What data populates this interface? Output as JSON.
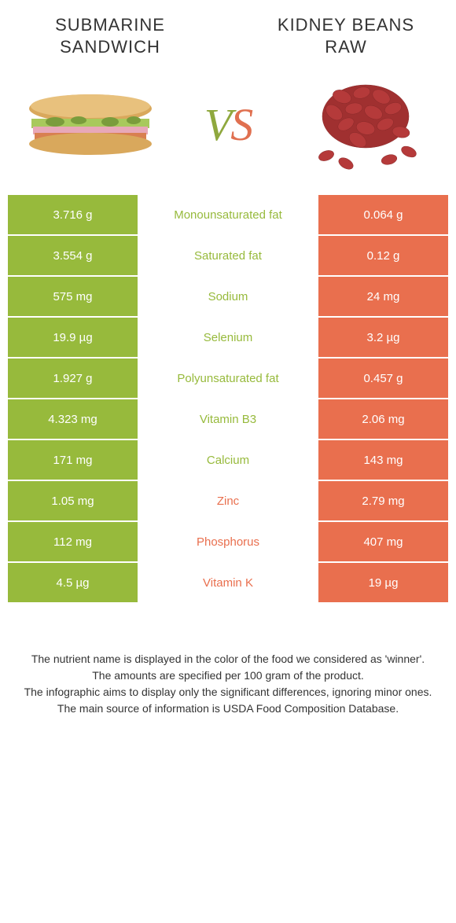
{
  "colors": {
    "green": "#97ba3c",
    "orange": "#e96f4e",
    "text": "#333333"
  },
  "header": {
    "left_title": "SUBMARINE SANDWICH",
    "right_title": "KIDNEY BEANS RAW",
    "vs": "VS"
  },
  "rows": [
    {
      "left": "3.716 g",
      "label": "Monounsaturated fat",
      "right": "0.064 g",
      "winner": "left"
    },
    {
      "left": "3.554 g",
      "label": "Saturated fat",
      "right": "0.12 g",
      "winner": "left"
    },
    {
      "left": "575 mg",
      "label": "Sodium",
      "right": "24 mg",
      "winner": "left"
    },
    {
      "left": "19.9 µg",
      "label": "Selenium",
      "right": "3.2 µg",
      "winner": "left"
    },
    {
      "left": "1.927 g",
      "label": "Polyunsaturated fat",
      "right": "0.457 g",
      "winner": "left"
    },
    {
      "left": "4.323 mg",
      "label": "Vitamin B3",
      "right": "2.06 mg",
      "winner": "left"
    },
    {
      "left": "171 mg",
      "label": "Calcium",
      "right": "143 mg",
      "winner": "left"
    },
    {
      "left": "1.05 mg",
      "label": "Zinc",
      "right": "2.79 mg",
      "winner": "right"
    },
    {
      "left": "112 mg",
      "label": "Phosphorus",
      "right": "407 mg",
      "winner": "right"
    },
    {
      "left": "4.5 µg",
      "label": "Vitamin K",
      "right": "19 µg",
      "winner": "right"
    }
  ],
  "footer": {
    "line1": "The nutrient name is displayed in the color of the food we considered as 'winner'.",
    "line2": "The amounts are specified per 100 gram of the product.",
    "line3": "The infographic aims to display only the significant differences, ignoring minor ones.",
    "line4": "The main source of information is USDA Food Composition Database."
  }
}
